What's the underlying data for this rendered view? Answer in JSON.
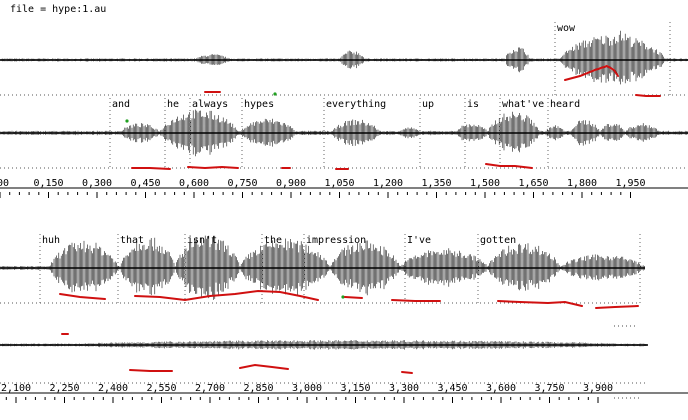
{
  "header": {
    "file_label": "file = hype:1.au"
  },
  "panel1": {
    "words_a": [
      "wow"
    ],
    "words_b": [
      "and",
      "he",
      "always",
      "hypes",
      "everything",
      "up",
      "is",
      "what've",
      "heard"
    ],
    "ticks": [
      "000",
      "0,150",
      "0,300",
      "0,450",
      "0,600",
      "0,750",
      "0,900",
      "1,050",
      "1,200",
      "1,350",
      "1,500",
      "1,650",
      "1,800",
      "1,950"
    ]
  },
  "panel2": {
    "words": [
      "huh",
      "that",
      "isn't",
      "the",
      "impression",
      "I've",
      "gotten"
    ],
    "ticks": [
      "2,100",
      "2,250",
      "2,400",
      "2,550",
      "2,700",
      "2,850",
      "3,000",
      "3,150",
      "3,300",
      "3,450",
      "3,600",
      "3,750",
      "3,900"
    ]
  },
  "colors": {
    "pitch": "#d01010",
    "wave": "#000000",
    "marker": "#20a020"
  }
}
